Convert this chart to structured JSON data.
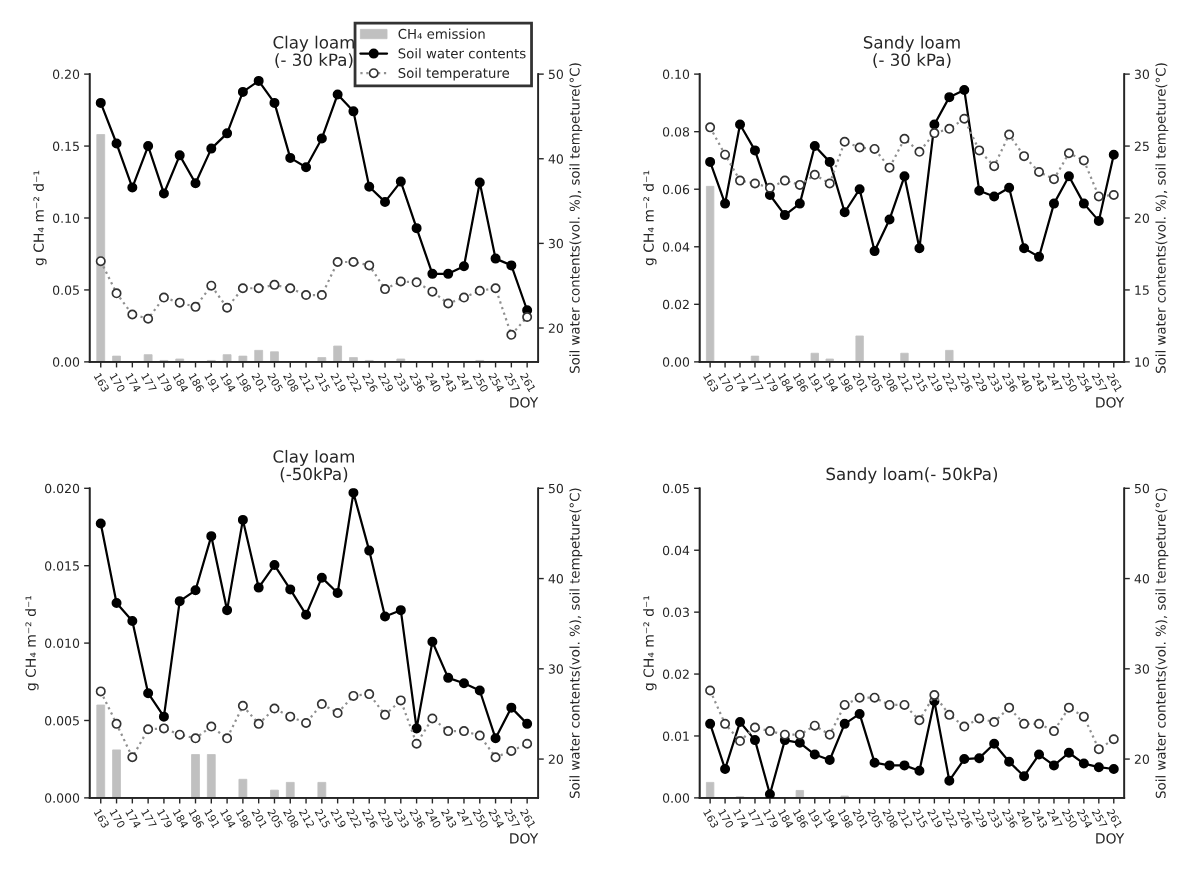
{
  "chart_data": [
    {
      "type": "bar",
      "title": "Clay loam\n(- 30 kPa)",
      "xlabel": "DOY",
      "ylabel": "g CH₄ m⁻² d⁻¹",
      "y2label": "Soil water contents(vol. %), soil tempeture(°C)",
      "legend": "top right",
      "categories": [
        "163",
        "170",
        "174",
        "177",
        "179",
        "184",
        "186",
        "191",
        "194",
        "198",
        "201",
        "205",
        "208",
        "212",
        "215",
        "219",
        "222",
        "226",
        "229",
        "233",
        "236",
        "240",
        "243",
        "247",
        "250",
        "254",
        "257",
        "261"
      ],
      "ylim": [
        0,
        0.2
      ],
      "yticks": [
        {
          "value": 0,
          "label": "0.00"
        },
        {
          "value": 0.05,
          "label": "0.05"
        },
        {
          "value": 0.1,
          "label": "0.10"
        },
        {
          "value": 0.15,
          "label": "0.15"
        },
        {
          "value": 0.2,
          "label": "0.20"
        }
      ],
      "y2lim": [
        16,
        50
      ],
      "y2ticks": [
        20,
        30,
        40,
        50
      ],
      "series": [
        {
          "name": "CH₄ emission",
          "color": "#c0c0c0",
          "values": [
            0.158,
            0.004,
            0,
            0.005,
            0.001,
            0.002,
            0,
            0.001,
            0.005,
            0.004,
            0.008,
            0.007,
            0,
            0,
            0.003,
            0.011,
            0.003,
            0.001,
            0,
            0.002,
            0,
            0,
            0,
            0,
            0.001,
            0,
            0,
            0
          ]
        },
        {
          "name": "Soil water contents",
          "type": "line",
          "axis": "y2",
          "color": "#000000",
          "marker": "circle",
          "line_style": "solid",
          "values": [
            46.6,
            41.8,
            36.6,
            41.5,
            35.9,
            40.4,
            37.1,
            41.2,
            43.0,
            47.9,
            49.2,
            46.6,
            40.1,
            39.0,
            42.4,
            47.6,
            45.6,
            36.7,
            34.9,
            37.3,
            31.8,
            26.4,
            26.4,
            27.3,
            37.2,
            28.2,
            27.4,
            22.1
          ]
        },
        {
          "name": "Soil temperature",
          "type": "line",
          "axis": "y2",
          "color": "#909090",
          "marker": "circle",
          "line_style": "dotted",
          "values": [
            27.9,
            24.1,
            21.6,
            21.1,
            23.6,
            23.0,
            22.5,
            25.0,
            22.4,
            24.7,
            24.7,
            25.1,
            24.7,
            23.9,
            23.9,
            27.8,
            27.8,
            27.4,
            24.6,
            25.5,
            25.4,
            24.3,
            22.9,
            23.6,
            24.4,
            24.7,
            19.2,
            21.3
          ]
        }
      ]
    },
    {
      "type": "bar",
      "title": "Sandy loam\n(- 30 kPa)",
      "xlabel": "DOY",
      "ylabel": "g CH₄ m⁻² d⁻¹",
      "y2label": "Soil water contents(vol. %), soil tempeture(°C)",
      "categories": [
        "163",
        "170",
        "174",
        "177",
        "179",
        "184",
        "186",
        "191",
        "194",
        "198",
        "201",
        "205",
        "208",
        "212",
        "215",
        "219",
        "222",
        "226",
        "229",
        "233",
        "236",
        "240",
        "243",
        "247",
        "250",
        "254",
        "257",
        "261"
      ],
      "ylim": [
        0,
        0.1
      ],
      "yticks": [
        {
          "value": 0,
          "label": "0.00"
        },
        {
          "value": 0.02,
          "label": "0.02"
        },
        {
          "value": 0.04,
          "label": "0.04"
        },
        {
          "value": 0.06,
          "label": "0.06"
        },
        {
          "value": 0.08,
          "label": "0.08"
        },
        {
          "value": 0.1,
          "label": "0.10"
        }
      ],
      "y2lim": [
        10,
        30
      ],
      "y2ticks": [
        10,
        15,
        20,
        25,
        30
      ],
      "series": [
        {
          "color": "#c0c0c0",
          "values": [
            0.061,
            0,
            0,
            0.002,
            0,
            0,
            0,
            0.003,
            0.001,
            0,
            0.009,
            0,
            0,
            0.003,
            0,
            0,
            0.004,
            0,
            0,
            0,
            0,
            0,
            0,
            0,
            0,
            0,
            0,
            0
          ]
        },
        {
          "type": "line",
          "axis": "y2",
          "color": "#000000",
          "marker": "circle",
          "line_style": "solid",
          "values": [
            23.9,
            21.0,
            26.5,
            24.7,
            21.6,
            20.2,
            21.0,
            25.0,
            23.9,
            20.4,
            22.0,
            17.7,
            19.9,
            22.9,
            17.9,
            26.5,
            28.4,
            28.9,
            21.9,
            21.5,
            22.1,
            17.9,
            17.3,
            21.0,
            22.9,
            21.0,
            19.8,
            24.4
          ]
        },
        {
          "type": "line",
          "axis": "y2",
          "color": "#909090",
          "marker": "circle",
          "line_style": "dotted",
          "values": [
            26.3,
            24.4,
            22.6,
            22.4,
            22.1,
            22.6,
            22.3,
            23.0,
            22.4,
            25.3,
            24.9,
            24.8,
            23.5,
            25.5,
            24.6,
            25.9,
            26.2,
            26.9,
            24.7,
            23.6,
            25.8,
            24.3,
            23.2,
            22.7,
            24.5,
            24.0,
            21.5,
            21.6
          ]
        }
      ]
    },
    {
      "type": "bar",
      "title": "Clay loam\n(-50kPa)",
      "xlabel": "DOY",
      "ylabel": "g CH₄ m⁻² d⁻¹",
      "y2label": "Soil water contents(vol. %), soil tempeture(°C)",
      "categories": [
        "163",
        "170",
        "174",
        "177",
        "179",
        "184",
        "186",
        "191",
        "194",
        "198",
        "201",
        "205",
        "208",
        "212",
        "215",
        "219",
        "222",
        "226",
        "229",
        "233",
        "236",
        "240",
        "243",
        "247",
        "250",
        "254",
        "257",
        "261"
      ],
      "ylim": [
        0,
        0.02
      ],
      "yticks": [
        {
          "value": 0,
          "label": "0.000"
        },
        {
          "value": 0.005,
          "label": "0.005"
        },
        {
          "value": 0.01,
          "label": "0.010"
        },
        {
          "value": 0.015,
          "label": "0.015"
        },
        {
          "value": 0.02,
          "label": "0.020"
        }
      ],
      "y2lim": [
        15.7,
        50
      ],
      "y2ticks": [
        20,
        30,
        40,
        50
      ],
      "series": [
        {
          "color": "#c0c0c0",
          "values": [
            0.006,
            0.0031,
            0,
            0,
            0,
            0,
            0.0028,
            0.0028,
            0,
            0.0012,
            0,
            0.0005,
            0.001,
            0,
            0.001,
            0,
            0,
            0,
            0,
            0,
            0,
            0,
            0,
            0,
            0,
            0,
            0,
            0
          ]
        },
        {
          "type": "line",
          "axis": "y2",
          "color": "#000000",
          "marker": "circle",
          "line_style": "solid",
          "values": [
            46.1,
            37.3,
            35.3,
            27.3,
            24.7,
            37.5,
            38.7,
            44.7,
            36.5,
            46.5,
            39.0,
            41.5,
            38.8,
            36.0,
            40.1,
            38.4,
            49.5,
            43.1,
            35.8,
            36.5,
            23.4,
            33.0,
            29.0,
            28.4,
            27.6,
            22.3,
            25.7,
            23.9
          ]
        },
        {
          "type": "line",
          "axis": "y2",
          "color": "#909090",
          "marker": "circle",
          "line_style": "dotted",
          "values": [
            27.5,
            23.9,
            20.2,
            23.3,
            23.4,
            22.7,
            22.3,
            23.6,
            22.3,
            25.9,
            23.9,
            25.6,
            24.7,
            24.0,
            26.1,
            25.1,
            27.0,
            27.2,
            24.9,
            26.5,
            21.7,
            24.5,
            23.1,
            23.1,
            22.6,
            20.2,
            20.9,
            21.7
          ]
        }
      ]
    },
    {
      "type": "bar",
      "title": "Sandy loam(- 50kPa)",
      "xlabel": "DOY",
      "ylabel": "g CH₄ m⁻² d⁻¹",
      "y2label": "Soil water contents(vol. %), soil tempeture(°C)",
      "categories": [
        "163",
        "170",
        "174",
        "177",
        "179",
        "184",
        "186",
        "191",
        "194",
        "198",
        "201",
        "205",
        "208",
        "212",
        "215",
        "219",
        "222",
        "226",
        "229",
        "233",
        "236",
        "240",
        "243",
        "247",
        "250",
        "254",
        "257",
        "261"
      ],
      "ylim": [
        0,
        0.05
      ],
      "yticks": [
        {
          "value": 0,
          "label": "0.00"
        },
        {
          "value": 0.01,
          "label": "0.01"
        },
        {
          "value": 0.02,
          "label": "0.02"
        },
        {
          "value": 0.03,
          "label": "0.03"
        },
        {
          "value": 0.04,
          "label": "0.04"
        },
        {
          "value": 0.05,
          "label": "0.05"
        }
      ],
      "y2lim": [
        15.7,
        50
      ],
      "y2ticks": [
        20,
        30,
        40,
        50
      ],
      "series": [
        {
          "color": "#c0c0c0",
          "values": [
            0.0025,
            0,
            0.0002,
            0,
            0,
            0,
            0.0012,
            0,
            0,
            0.0003,
            0,
            0,
            0,
            0,
            0,
            0,
            0,
            0,
            0,
            0,
            0,
            0,
            0,
            0,
            0,
            0,
            0,
            0
          ]
        },
        {
          "type": "line",
          "axis": "y2",
          "color": "#000000",
          "marker": "circle",
          "line_style": "solid",
          "values": [
            23.9,
            18.9,
            24.1,
            22.1,
            16.1,
            22.1,
            21.8,
            20.5,
            19.9,
            23.9,
            25.0,
            19.6,
            19.3,
            19.3,
            18.7,
            26.4,
            17.6,
            20.0,
            20.1,
            21.7,
            19.7,
            18.1,
            20.5,
            19.3,
            20.7,
            19.5,
            19.1,
            18.9
          ]
        },
        {
          "type": "line",
          "axis": "y2",
          "color": "#909090",
          "marker": "circle",
          "line_style": "dotted",
          "values": [
            27.6,
            23.9,
            22.0,
            23.5,
            23.1,
            22.7,
            22.7,
            23.7,
            22.7,
            26.0,
            26.8,
            26.8,
            26.0,
            26.0,
            24.3,
            27.1,
            24.9,
            23.6,
            24.5,
            24.1,
            25.7,
            23.9,
            23.9,
            23.1,
            25.7,
            24.7,
            21.1,
            22.2
          ]
        }
      ]
    }
  ]
}
